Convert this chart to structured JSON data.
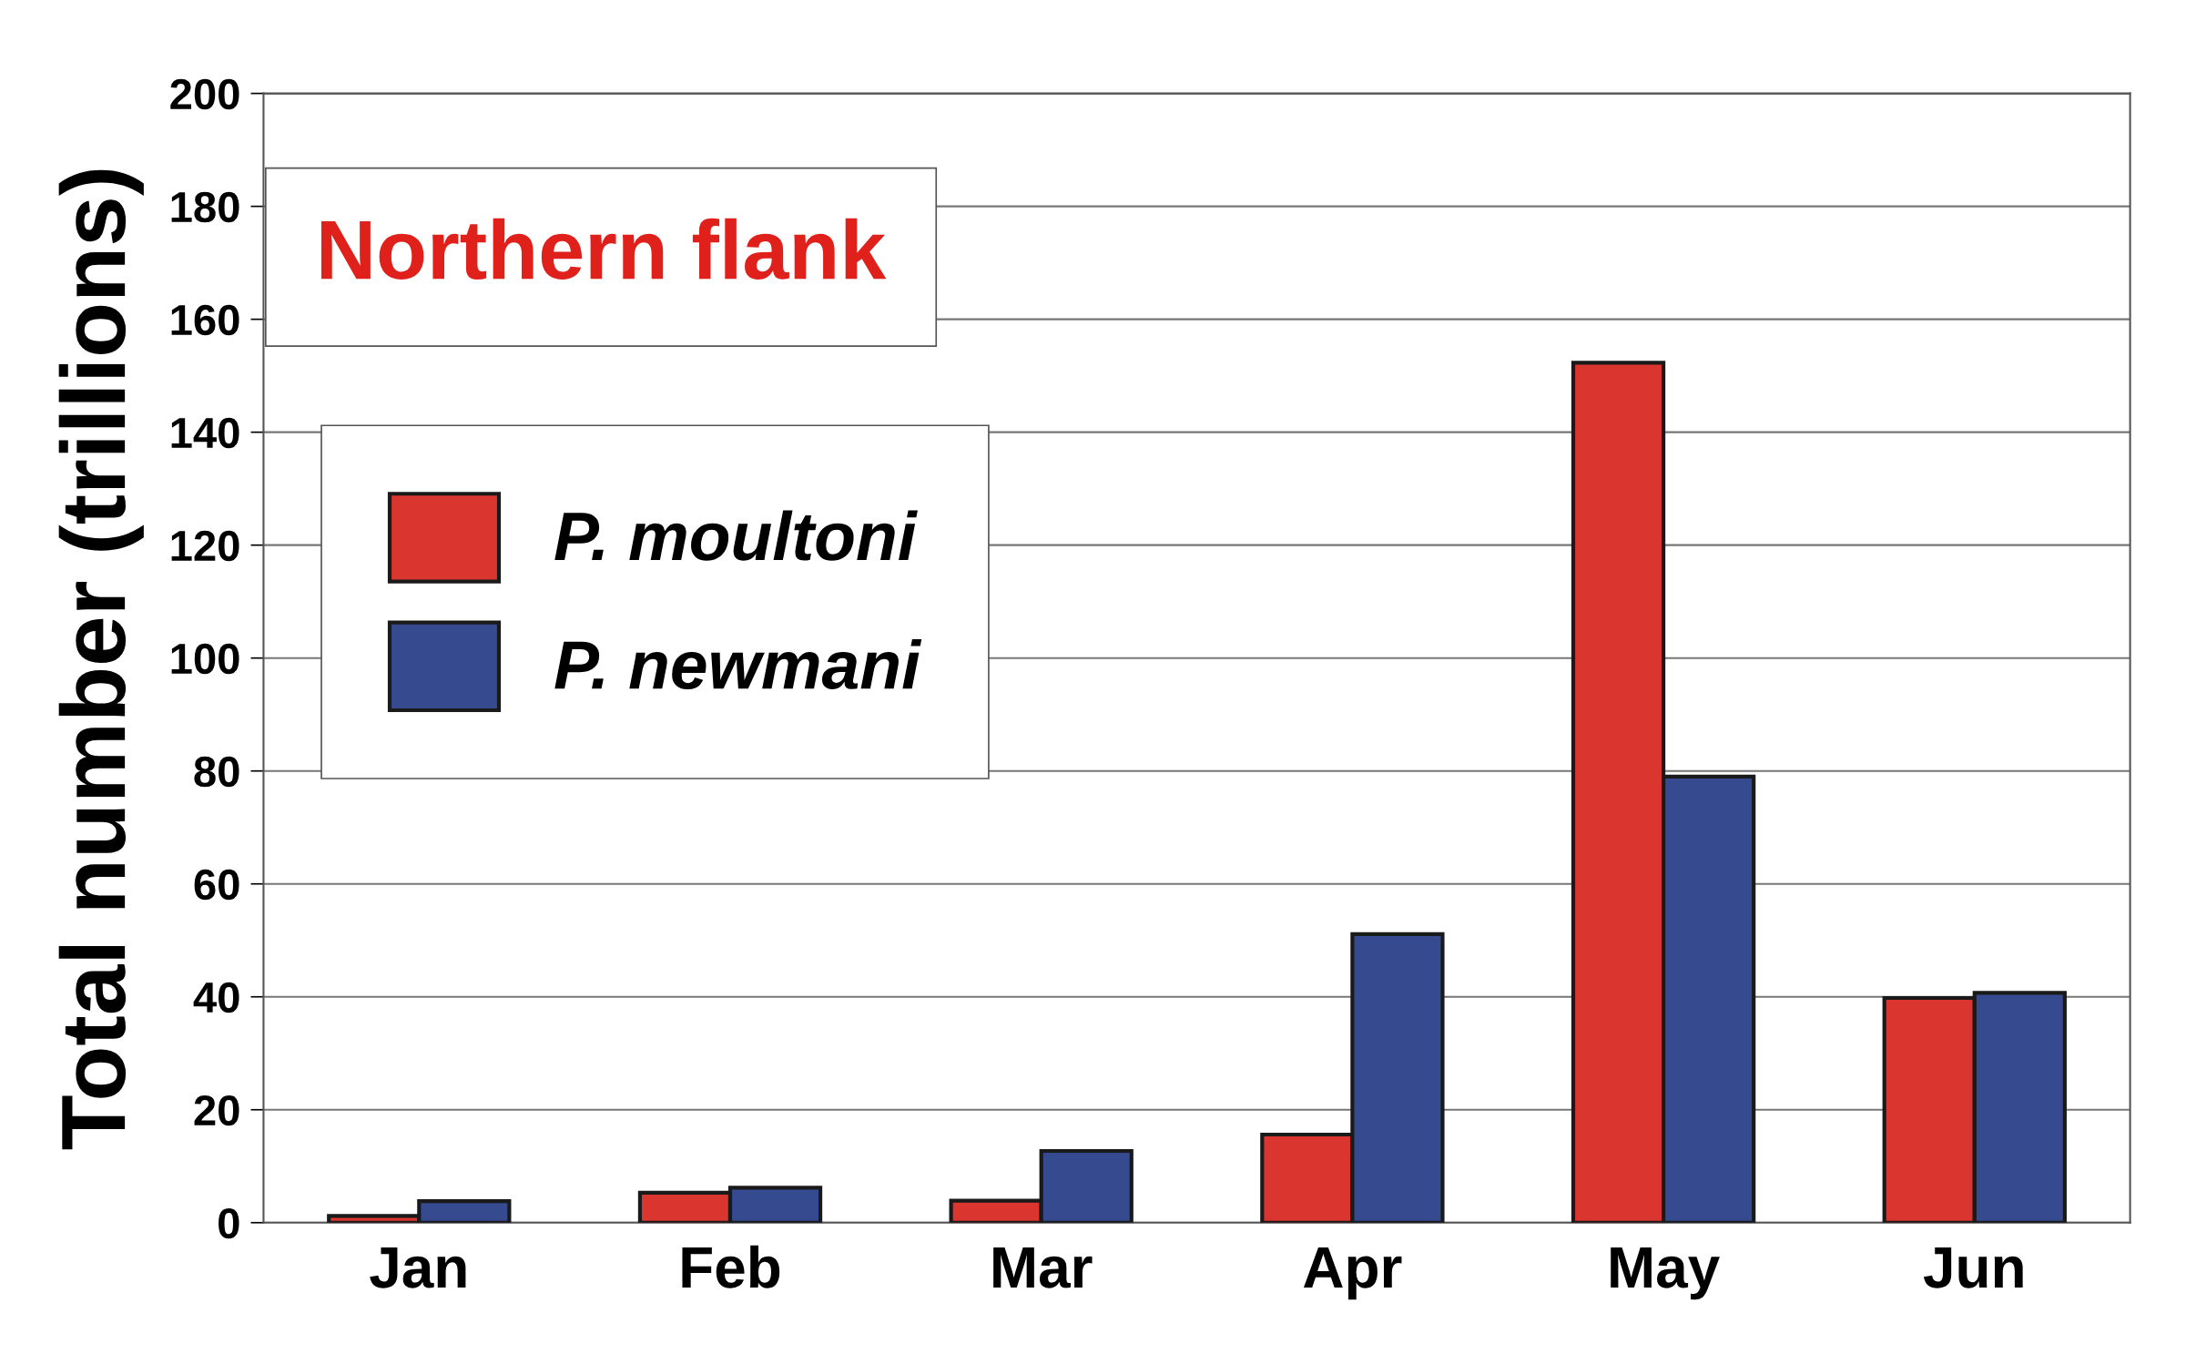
{
  "chart_data": {
    "type": "bar",
    "title": "Northern flank",
    "ylabel": "Total number (trillions)",
    "categories": [
      "Jan",
      "Feb",
      "Mar",
      "Apr",
      "May",
      "Jun"
    ],
    "series": [
      {
        "name": "P. moultoni",
        "color": "#db3530",
        "values": [
          1.2,
          5.3,
          3.9,
          15.6,
          152.3,
          39.8
        ]
      },
      {
        "name": "P. newmani",
        "color": "#354a8f",
        "values": [
          3.8,
          6.2,
          12.7,
          51.1,
          79.0,
          40.7
        ]
      }
    ],
    "ylim": [
      0,
      200
    ],
    "yticks": [
      0,
      20,
      40,
      60,
      80,
      100,
      120,
      140,
      160,
      180,
      200
    ],
    "grid": "y",
    "legend": "top left"
  }
}
